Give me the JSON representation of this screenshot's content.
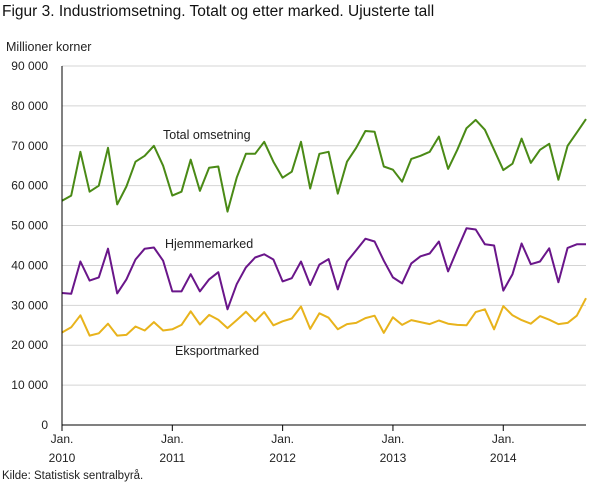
{
  "title": "Figur 3. Industriomsetning. Totalt og etter marked. Ujusterte tall",
  "source": "Kilde: Statistisk sentralbyrå.",
  "chart_data": {
    "type": "line",
    "ylabel": "Millioner  korner",
    "ylim": [
      0,
      90000
    ],
    "yticks": [
      0,
      10000,
      20000,
      30000,
      40000,
      50000,
      60000,
      70000,
      80000,
      90000
    ],
    "ytick_labels": [
      "0",
      "10 000",
      "20 000",
      "30 000",
      "40 000",
      "50 000",
      "60 000",
      "70 000",
      "80 000",
      "90 000"
    ],
    "x_start": "Jan. 2010",
    "x_ticks": [
      {
        "month": "Jan.",
        "year": "2010",
        "index": 0
      },
      {
        "month": "Jan.",
        "year": "2011",
        "index": 12
      },
      {
        "month": "Jan.",
        "year": "2012",
        "index": 24
      },
      {
        "month": "Jan.",
        "year": "2013",
        "index": 36
      },
      {
        "month": "Jan.",
        "year": "2014",
        "index": 48
      }
    ],
    "grid": "horizontal",
    "series": [
      {
        "name": "Total omsetning",
        "color": "#4a8a16",
        "values": [
          56200,
          57500,
          68500,
          58500,
          60000,
          69500,
          55300,
          59800,
          66000,
          67500,
          70000,
          65000,
          57500,
          58500,
          66500,
          58700,
          64500,
          64800,
          53500,
          62000,
          68000,
          68000,
          71000,
          66000,
          62000,
          63500,
          71000,
          59300,
          68000,
          68500,
          58000,
          66000,
          69500,
          73700,
          73500,
          64800,
          64000,
          61000,
          66700,
          67500,
          68500,
          72300,
          64200,
          69000,
          74400,
          76500,
          74000,
          69000,
          63900,
          65500,
          71800,
          65700,
          69000,
          70500,
          61500,
          70000,
          73300,
          76700
        ],
        "label_pos": [
          163,
          139
        ]
      },
      {
        "name": "Hjemmemarked",
        "color": "#6a168a",
        "values": [
          33100,
          32900,
          41000,
          36200,
          37000,
          44200,
          33000,
          36500,
          41500,
          44200,
          44500,
          41200,
          33500,
          33500,
          37800,
          33500,
          36500,
          38300,
          29000,
          35300,
          39500,
          42000,
          42800,
          41500,
          36000,
          36800,
          41000,
          35100,
          40200,
          41600,
          34000,
          41000,
          43800,
          46700,
          46000,
          41200,
          37000,
          35500,
          40500,
          42300,
          43000,
          46000,
          38500,
          44000,
          49300,
          49000,
          45300,
          45000,
          33700,
          37800,
          45500,
          40300,
          41000,
          44300,
          35800,
          44400,
          45300,
          45300
        ],
        "label_pos": [
          165,
          248
        ]
      },
      {
        "name": "Eksportmarked",
        "color": "#e8b31c",
        "values": [
          23200,
          24500,
          27500,
          22400,
          23000,
          25400,
          22400,
          22600,
          24700,
          23700,
          25800,
          23700,
          24000,
          25100,
          28500,
          25200,
          27600,
          26400,
          24300,
          26300,
          28400,
          26000,
          28300,
          25000,
          26000,
          26700,
          29700,
          24100,
          28000,
          26900,
          24000,
          25300,
          25600,
          26800,
          27400,
          23100,
          27000,
          25100,
          26300,
          25800,
          25300,
          26200,
          25400,
          25100,
          25000,
          28300,
          29000,
          24000,
          29800,
          27500,
          26300,
          25400,
          27300,
          26400,
          25300,
          25600,
          27400,
          31800
        ],
        "label_pos": [
          175,
          355
        ]
      }
    ]
  }
}
